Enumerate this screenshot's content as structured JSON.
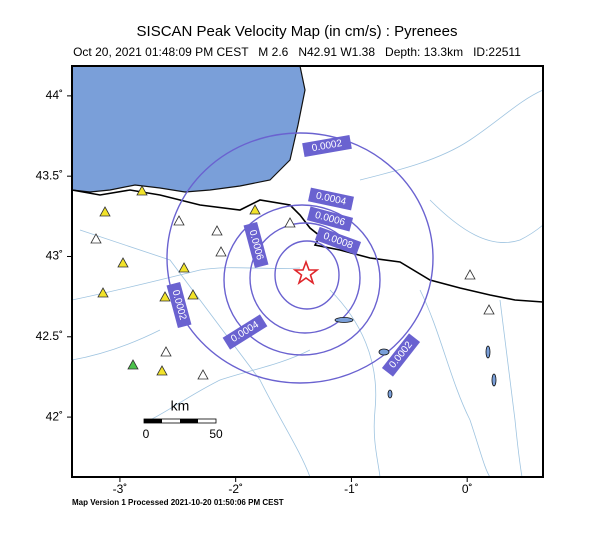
{
  "header": {
    "title": "SISCAN Peak Velocity Map (in cm/s) : Pyrenees",
    "subtitle": "Oct 20, 2021 01:48:09 PM CEST   M 2.6   N42.91 W1.38   Depth: 13.3km   ID:22511"
  },
  "map": {
    "xlim": [
      -3.414,
      0.655
    ],
    "ylim": [
      41.627,
      44.186
    ],
    "xticks": [
      {
        "value": -3,
        "label": "-3˚"
      },
      {
        "value": -2,
        "label": "-2˚"
      },
      {
        "value": -1,
        "label": "-1˚"
      },
      {
        "value": 0,
        "label": "0˚"
      }
    ],
    "yticks": [
      {
        "value": 42,
        "label": "42˚"
      },
      {
        "value": 42.5,
        "label": "42.5˚"
      },
      {
        "value": 43,
        "label": "43˚"
      },
      {
        "value": 43.5,
        "label": "43.5˚"
      },
      {
        "value": 44,
        "label": "44˚"
      }
    ],
    "contour_labels": [
      "0.0002",
      "0.0004",
      "0.0006",
      "0.0008",
      "0.0006",
      "0.0002",
      "0.0004",
      "0.0002"
    ],
    "scale_bar": {
      "unit": "km",
      "labels": [
        "0",
        "50"
      ]
    }
  },
  "footer": "Map Version 1 Processed 2021-10-20 01:50:06 PM CEST"
}
